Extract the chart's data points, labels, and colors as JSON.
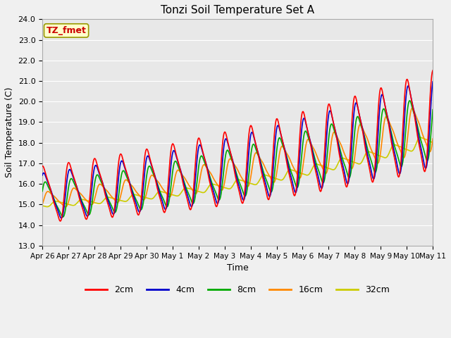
{
  "title": "Tonzi Soil Temperature Set A",
  "xlabel": "Time",
  "ylabel": "Soil Temperature (C)",
  "ylim": [
    13.0,
    24.0
  ],
  "yticks": [
    13.0,
    14.0,
    15.0,
    16.0,
    17.0,
    18.0,
    19.0,
    20.0,
    21.0,
    22.0,
    23.0,
    24.0
  ],
  "xtick_labels": [
    "Apr 26",
    "Apr 27",
    "Apr 28",
    "Apr 29",
    "Apr 30",
    "May 1",
    "May 2",
    "May 3",
    "May 4",
    "May 5",
    "May 6",
    "May 7",
    "May 8",
    "May 9",
    "May 10",
    "May 11"
  ],
  "colors": {
    "2cm": "#ff0000",
    "4cm": "#0000cc",
    "8cm": "#00aa00",
    "16cm": "#ff8800",
    "32cm": "#cccc00"
  },
  "background_color": "#e8e8e8",
  "grid_color": "#ffffff",
  "annotation_text": "TZ_fmet",
  "legend_box_color": "#ffffcc",
  "legend_box_border": "#999900"
}
